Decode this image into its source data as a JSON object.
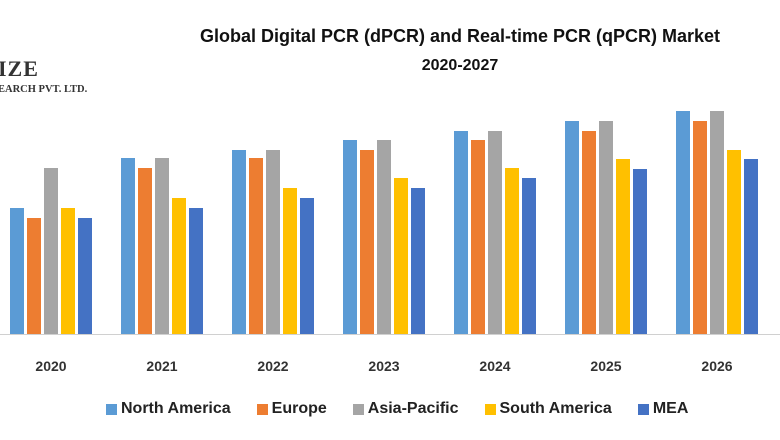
{
  "logo": {
    "line1": "IZE",
    "line2": "EARCH PVT. LTD."
  },
  "chart_data": {
    "type": "bar",
    "title": "Global Digital PCR (dPCR) and Real-time PCR (qPCR) Market",
    "subtitle": "2020-2027",
    "xlabel": "",
    "ylabel": "",
    "ylim": [
      0,
      25
    ],
    "grid": false,
    "legend_position": "bottom",
    "categories": [
      "2020",
      "2021",
      "2022",
      "2023",
      "2024",
      "2025",
      "2026"
    ],
    "series": [
      {
        "name": "North America",
        "color": "#5B9BD5",
        "values": [
          12.6,
          17.6,
          18.4,
          19.4,
          20.3,
          21.3,
          22.3
        ]
      },
      {
        "name": "Europe",
        "color": "#ED7D31",
        "values": [
          11.6,
          16.6,
          17.6,
          18.4,
          19.4,
          20.3,
          21.3
        ]
      },
      {
        "name": "Asia-Pacific",
        "color": "#A5A5A5",
        "values": [
          16.6,
          17.6,
          18.4,
          19.4,
          20.3,
          21.3,
          22.3
        ]
      },
      {
        "name": "South America",
        "color": "#FFC000",
        "values": [
          12.6,
          13.6,
          14.6,
          15.6,
          16.6,
          17.5,
          18.4
        ]
      },
      {
        "name": "MEA",
        "color": "#4472C4",
        "values": [
          11.6,
          12.6,
          13.6,
          14.6,
          15.6,
          16.5,
          17.5
        ]
      }
    ]
  }
}
